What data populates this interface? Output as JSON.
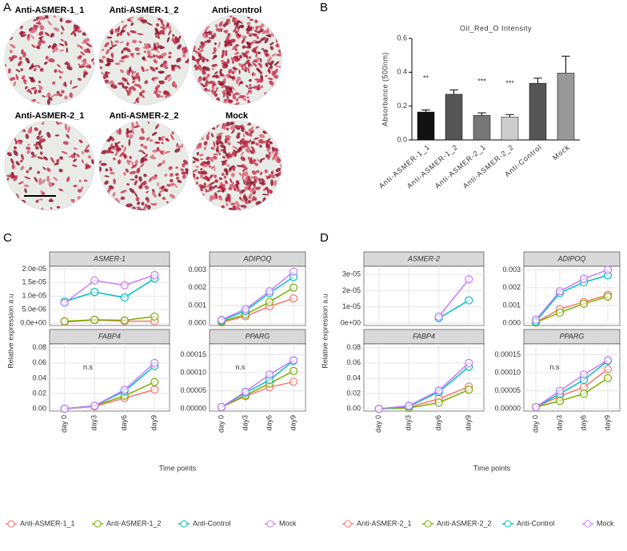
{
  "panel_labels": [
    "A",
    "B",
    "C",
    "D"
  ],
  "images": [
    "Anti-ASMER-1_1",
    "Anti-ASMER-1_2",
    "Anti-control",
    "Anti-ASMER-2_1",
    "Anti-ASMER-2_2",
    "Mock"
  ],
  "chart_data": [
    {
      "type": "bar",
      "title": "Oil_Red_O Intensity",
      "y_label": "Absorbance (500nm)",
      "categories": [
        "Anti-ASMER-1_1",
        "Anti-ASMER-1_2",
        "Anti-ASMER-2_1",
        "Anti-ASMER-2_2",
        "Anti-Control",
        "Mock"
      ],
      "values": [
        0.165,
        0.27,
        0.145,
        0.135,
        0.335,
        0.395
      ],
      "errors": [
        0.012,
        0.025,
        0.015,
        0.015,
        0.03,
        0.1
      ],
      "colors": [
        "#111111",
        "#555555",
        "#777777",
        "#cccccc",
        "#555555",
        "#999999"
      ],
      "annotations": [
        "**",
        null,
        "***",
        "***",
        null,
        null
      ],
      "ylim": [
        0,
        0.6
      ],
      "yticks": [
        {
          "value": 0,
          "label": "0.0"
        },
        0.2,
        0.4,
        0.6
      ]
    },
    {
      "type": "facet-line",
      "y_label": "Relative expression a.u",
      "x_label": "Time points",
      "categories": [
        "day 0",
        "day3",
        "day6",
        "day9"
      ],
      "legend": [
        {
          "name": "Anti-ASMER-1_1",
          "color": "#f8766d"
        },
        {
          "name": "Anti-ASMER-1_2",
          "color": "#7cae00"
        },
        {
          "name": "Anti-Control",
          "color": "#00bfc4"
        },
        {
          "name": "Mock",
          "color": "#c77cff"
        }
      ],
      "facets": [
        {
          "title": "ASMER-1",
          "ylim": [
            -8e-07,
            2.1e-05
          ],
          "yticks": [
            {
              "value": 0,
              "label": "0.0e+00"
            },
            {
              "value": 5e-06,
              "label": "5.0e-06"
            },
            {
              "value": 1e-05,
              "label": "1.0e-05"
            },
            {
              "value": 1.5e-05,
              "label": "1.5e-05"
            },
            {
              "value": 2e-05,
              "label": "2.0e-05"
            }
          ],
          "lines": [
            [
              5e-07,
              1.2e-06,
              8e-07,
              8e-07
            ],
            [
              8e-07,
              1.3e-06,
              1.1e-06,
              2.5e-06
            ],
            [
              8e-06,
              1.15e-05,
              9.5e-06,
              1.65e-05
            ],
            [
              7.5e-06,
              1.58e-05,
              1.4e-05,
              1.78e-05
            ]
          ]
        },
        {
          "title": "ADIPOQ",
          "ylim": [
            -0.00012,
            0.0032
          ],
          "yticks": [
            {
              "value": 0,
              "label": "0.000"
            },
            {
              "value": 0.001,
              "label": "0.001"
            },
            {
              "value": 0.002,
              "label": "0.002"
            },
            {
              "value": 0.003,
              "label": "0.003"
            }
          ],
          "lines": [
            [
              5e-05,
              0.0004,
              0.00095,
              0.0014
            ],
            [
              0.0001,
              0.0005,
              0.0012,
              0.002
            ],
            [
              0.00015,
              0.0007,
              0.0017,
              0.0026
            ],
            [
              0.0002,
              0.0008,
              0.0018,
              0.0029
            ]
          ]
        },
        {
          "title": "FABP4",
          "ylim": [
            -0.003,
            0.085
          ],
          "annotation": "n.s",
          "yticks": [
            {
              "value": 0,
              "label": "0.00"
            },
            {
              "value": 0.02,
              "label": "0.02"
            },
            {
              "value": 0.04,
              "label": "0.04"
            },
            {
              "value": 0.06,
              "label": "0.06"
            },
            {
              "value": 0.08,
              "label": "0.08"
            }
          ],
          "lines": [
            [
              0,
              0.003,
              0.014,
              0.025
            ],
            [
              0,
              0.004,
              0.017,
              0.035
            ],
            [
              0,
              0.004,
              0.023,
              0.056
            ],
            [
              0,
              0.004,
              0.025,
              0.06
            ]
          ]
        },
        {
          "title": "PPARG",
          "ylim": [
            -6e-06,
            0.00018
          ],
          "annotation": "n.s",
          "yticks": [
            {
              "value": 0,
              "label": "0.00000"
            },
            {
              "value": 5e-05,
              "label": "0.00005"
            },
            {
              "value": 0.0001,
              "label": "0.00010"
            },
            {
              "value": 0.00015,
              "label": "0.00015"
            }
          ],
          "lines": [
            [
              5e-06,
              3.5e-05,
              6e-05,
              7.5e-05
            ],
            [
              5e-06,
              3.8e-05,
              7e-05,
              0.000105
            ],
            [
              5e-06,
              4.5e-05,
              8e-05,
              0.000133
            ],
            [
              5e-06,
              4.8e-05,
              9.5e-05,
              0.000135
            ]
          ]
        }
      ]
    },
    {
      "type": "facet-line",
      "y_label": "Relative expression a.u",
      "x_label": "Time points",
      "categories": [
        "day 0",
        "day3",
        "day6",
        "day9"
      ],
      "legend": [
        {
          "name": "Anti-ASMER-2_1",
          "color": "#f8766d"
        },
        {
          "name": "Anti-ASMER-2_2",
          "color": "#7cae00"
        },
        {
          "name": "Anti-Control",
          "color": "#00bfc4"
        },
        {
          "name": "Mock",
          "color": "#c77cff"
        }
      ],
      "facets": [
        {
          "title": "ASMER-2",
          "ylim": [
            -1.5e-06,
            3.5e-05
          ],
          "yticks": [
            {
              "value": 0,
              "label": "0e+00"
            },
            {
              "value": 1e-05,
              "label": "1e-05"
            },
            {
              "value": 2e-05,
              "label": "2e-05"
            },
            {
              "value": 3e-05,
              "label": "3e-05"
            }
          ],
          "lines": [
            [
              null,
              null,
              null,
              null
            ],
            [
              null,
              null,
              null,
              null
            ],
            [
              null,
              null,
              3e-06,
              1.4e-05
            ],
            [
              null,
              null,
              4e-06,
              2.7e-05
            ]
          ]
        },
        {
          "title": "ADIPOQ",
          "ylim": [
            -0.00012,
            0.0032
          ],
          "yticks": [
            {
              "value": 0,
              "label": "0.000"
            },
            {
              "value": 0.001,
              "label": "0.001"
            },
            {
              "value": 0.002,
              "label": "0.002"
            },
            {
              "value": 0.003,
              "label": "0.003"
            }
          ],
          "lines": [
            [
              5e-05,
              0.0008,
              0.0012,
              0.0016
            ],
            [
              5e-05,
              0.0006,
              0.0011,
              0.0015
            ],
            [
              0.0001,
              0.0017,
              0.0023,
              0.0027
            ],
            [
              0.0002,
              0.0018,
              0.0025,
              0.003
            ]
          ]
        },
        {
          "title": "FABP4",
          "ylim": [
            -0.003,
            0.085
          ],
          "yticks": [
            {
              "value": 0,
              "label": "0.00"
            },
            {
              "value": 0.02,
              "label": "0.02"
            },
            {
              "value": 0.04,
              "label": "0.04"
            },
            {
              "value": 0.06,
              "label": "0.06"
            },
            {
              "value": 0.08,
              "label": "0.08"
            }
          ],
          "lines": [
            [
              0,
              0.002,
              0.013,
              0.029
            ],
            [
              0,
              0.001,
              0.008,
              0.025
            ],
            [
              0,
              0.003,
              0.022,
              0.055
            ],
            [
              0,
              0.004,
              0.024,
              0.06
            ]
          ]
        },
        {
          "title": "PPARG",
          "ylim": [
            -6e-06,
            0.00018
          ],
          "annotation": "n.s",
          "yticks": [
            {
              "value": 0,
              "label": "0.00000"
            },
            {
              "value": 5e-05,
              "label": "0.00005"
            },
            {
              "value": 0.0001,
              "label": "0.00010"
            },
            {
              "value": 0.00015,
              "label": "0.00015"
            }
          ],
          "lines": [
            [
              5e-06,
              3.5e-05,
              6e-05,
              0.00011
            ],
            [
              5e-06,
              2.2e-05,
              4.2e-05,
              8.5e-05
            ],
            [
              5e-06,
              4.2e-05,
              8e-05,
              0.000133
            ],
            [
              5e-06,
              5e-05,
              9.5e-05,
              0.000135
            ]
          ]
        }
      ]
    }
  ]
}
